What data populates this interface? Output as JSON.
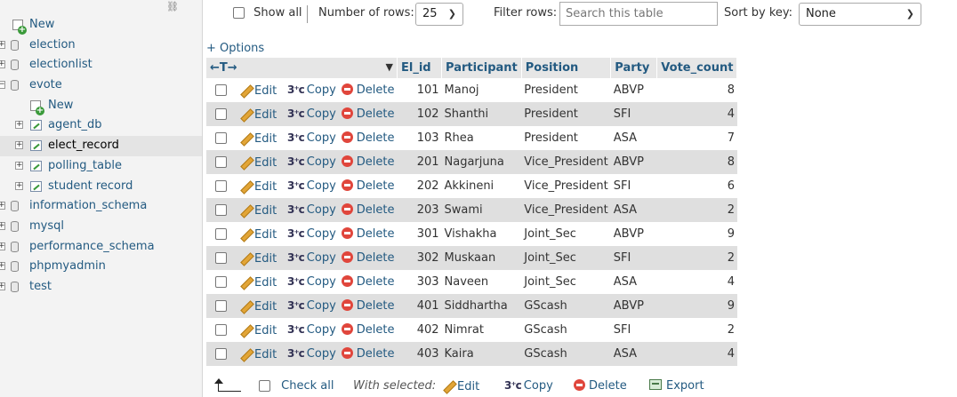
{
  "sidebar": {
    "items": [
      {
        "label": "New",
        "kind": "new",
        "level": 0
      },
      {
        "label": "election",
        "kind": "db",
        "level": 0
      },
      {
        "label": "electionlist",
        "kind": "db",
        "level": 0
      },
      {
        "label": "evote",
        "kind": "db",
        "level": 0,
        "expanded": true
      },
      {
        "label": "New",
        "kind": "new",
        "level": 1
      },
      {
        "label": "agent_db",
        "kind": "table",
        "level": 1
      },
      {
        "label": "elect_record",
        "kind": "table",
        "level": 1,
        "selected": true
      },
      {
        "label": "polling_table",
        "kind": "table",
        "level": 1
      },
      {
        "label": "student record",
        "kind": "table",
        "level": 1
      },
      {
        "label": "information_schema",
        "kind": "db",
        "level": 0
      },
      {
        "label": "mysql",
        "kind": "db",
        "level": 0
      },
      {
        "label": "performance_schema",
        "kind": "db",
        "level": 0
      },
      {
        "label": "phpmyadmin",
        "kind": "db",
        "level": 0
      },
      {
        "label": "test",
        "kind": "db",
        "level": 0
      }
    ]
  },
  "toolbar": {
    "show_all": "Show all",
    "rows_label": "Number of rows:",
    "rows_value": "25",
    "filter_label": "Filter rows:",
    "filter_placeholder": "Search this table",
    "sort_label": "Sort by key:",
    "sort_value": "None"
  },
  "options_link": "+ Options",
  "table": {
    "arrows": "←T→",
    "columns": [
      "El_id",
      "Participant",
      "Position",
      "Party",
      "Vote_count"
    ],
    "actions": {
      "edit": "Edit",
      "copy": "Copy",
      "delete": "Delete"
    },
    "rows": [
      [
        "101",
        "Manoj",
        "President",
        "ABVP",
        "8"
      ],
      [
        "102",
        "Shanthi",
        "President",
        "SFI",
        "4"
      ],
      [
        "103",
        "Rhea",
        "President",
        "ASA",
        "7"
      ],
      [
        "201",
        "Nagarjuna",
        "Vice_President",
        "ABVP",
        "8"
      ],
      [
        "202",
        "Akkineni",
        "Vice_President",
        "SFI",
        "6"
      ],
      [
        "203",
        "Swami",
        "Vice_President",
        "ASA",
        "2"
      ],
      [
        "301",
        "Vishakha",
        "Joint_Sec",
        "ABVP",
        "9"
      ],
      [
        "302",
        "Muskaan",
        "Joint_Sec",
        "SFI",
        "2"
      ],
      [
        "303",
        "Naveen",
        "Joint_Sec",
        "ASA",
        "4"
      ],
      [
        "401",
        "Siddhartha",
        "GScash",
        "ABVP",
        "9"
      ],
      [
        "402",
        "Nimrat",
        "GScash",
        "SFI",
        "2"
      ],
      [
        "403",
        "Kaira",
        "GScash",
        "ASA",
        "4"
      ]
    ]
  },
  "bottom": {
    "check_all": "Check all",
    "with_selected": "With selected:",
    "edit": "Edit",
    "copy": "Copy",
    "delete": "Delete",
    "export": "Export"
  },
  "colors": {
    "link": "#235a81",
    "row_even": "#dfdfdf",
    "header_bg": "#e6e6e6",
    "delete_red": "#e0463c"
  }
}
